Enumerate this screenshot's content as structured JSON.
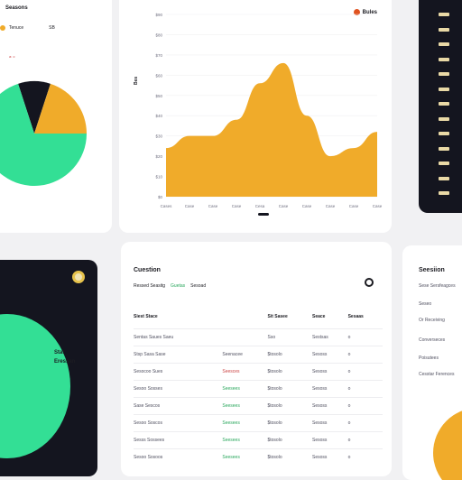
{
  "pie_card": {
    "title": "Seasons",
    "legend_label": "Tenuce",
    "legend_value": "SB",
    "sub_label": "a: c",
    "colors": {
      "green": "#33df95",
      "dark": "#14151f",
      "orange": "#f0ab2a"
    },
    "slices": [
      {
        "name": "green",
        "value": 70
      },
      {
        "name": "dark",
        "value": 10
      },
      {
        "name": "orange",
        "value": 20
      }
    ]
  },
  "area_card": {
    "legend_label": "Bules",
    "y_title": "Bes",
    "color": "#f0ab2a",
    "accent": "#e0521f"
  },
  "chart_data": {
    "type": "area",
    "x": [
      "Cases",
      "Case",
      "Case",
      "Case",
      "Cesa",
      "Case",
      "Case",
      "Case",
      "Case",
      "Case"
    ],
    "y_ticks": [
      "$90",
      "$80",
      "$70",
      "$60",
      "$50",
      "$40",
      "$30",
      "$20",
      "$10",
      "$0"
    ],
    "ylim": [
      0,
      90
    ],
    "values": [
      24,
      30,
      30,
      38,
      56,
      66,
      40,
      20,
      24,
      32
    ],
    "grid": true
  },
  "list_card": {
    "items": [
      "",
      "",
      "",
      "",
      "",
      "",
      "",
      "",
      "",
      "",
      "",
      "",
      ""
    ]
  },
  "donut_card": {
    "label_line1": "Stat",
    "label_line2": "Eressan"
  },
  "table_card": {
    "title": "Cuestion",
    "meta": [
      "Ressed Seasitg",
      "Guetas",
      "Sesoad"
    ],
    "headers": [
      "Siest Stace",
      "",
      "Sit Sasee",
      "Seace",
      "Sesaas"
    ],
    "rows": [
      [
        "Sentas Saues Saeu",
        "",
        "Sso",
        "Sestsas",
        "o"
      ],
      [
        "Stsp Sasa Sase",
        "Seenacee",
        "$tosolo",
        "Sesoss",
        "o"
      ],
      [
        "Sesocoo Sues",
        "Seesces",
        "$tosolo",
        "Sesoss",
        "o"
      ],
      [
        "Sesoo Sosses",
        "Seesees",
        "$tosolo",
        "Sesoss",
        "o"
      ],
      [
        "Sase Sescos",
        "Seesees",
        "$tosolo",
        "Sesoss",
        "o"
      ],
      [
        "Sesoo Soscos",
        "Seesees",
        "$tosolo",
        "Sesoss",
        "o"
      ],
      [
        "Sesss Sossees",
        "Seesees",
        "$tosolo",
        "Sesoss",
        "o"
      ],
      [
        "Sesoo Sosoos",
        "Seesees",
        "$tosolo",
        "Sesoss",
        "o"
      ]
    ]
  },
  "summary_card": {
    "title": "Seesiion",
    "rows": [
      "Sese Sersfeagces",
      "Seseo",
      "Or Receiving",
      "Converseces",
      "Poisutees",
      "Cesstar Ferences"
    ]
  }
}
